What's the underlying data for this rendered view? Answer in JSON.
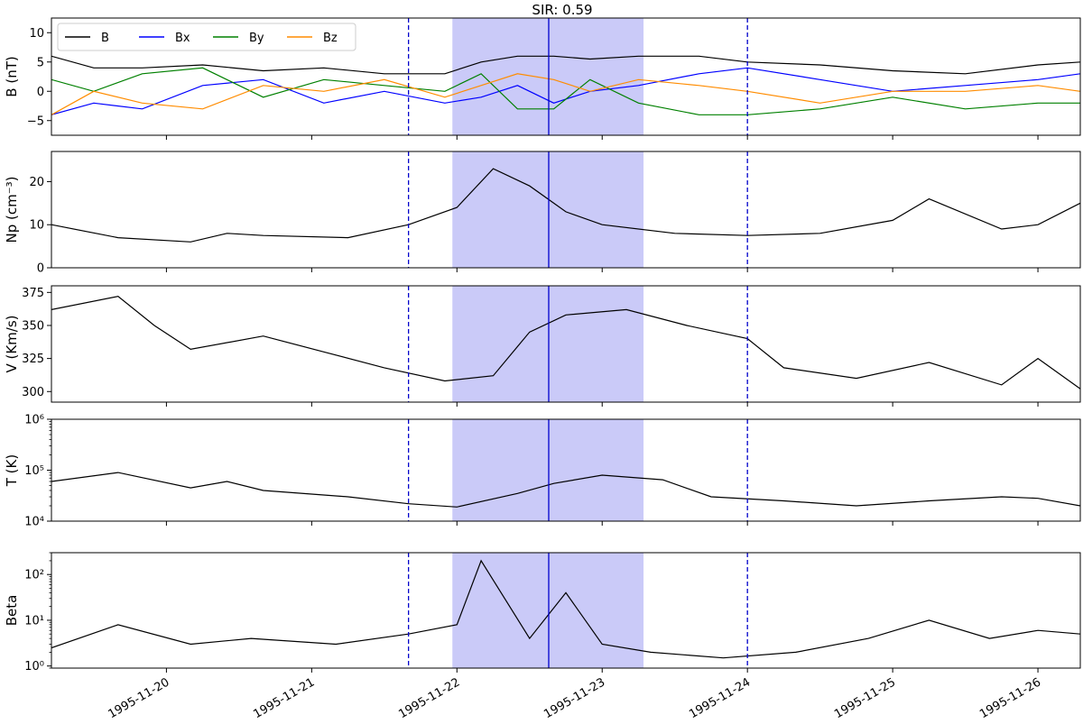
{
  "chart_data": {
    "type": "line",
    "title": "SIR: 0.59",
    "x_range": [
      "1995-11-19T05:00",
      "1995-11-26T07:00"
    ],
    "x_ticks": [
      "1995-11-20",
      "1995-11-21",
      "1995-11-22",
      "1995-11-23",
      "1995-11-24",
      "1995-11-25",
      "1995-11-26"
    ],
    "shaded_interval": {
      "start": "1995-11-21T23:15",
      "end": "1995-11-23T06:50",
      "color": "#8080ee"
    },
    "center_line": {
      "time": "1995-11-22T15:10",
      "style": "solid",
      "color": "#0000cc"
    },
    "boundary_lines": [
      {
        "time": "1995-11-21T16:00",
        "style": "dashed",
        "color": "#0000cc"
      },
      {
        "time": "1995-11-24T00:00",
        "style": "dashed",
        "color": "#0000cc"
      }
    ],
    "panels": [
      {
        "id": "B",
        "ylabel": "B (nT)",
        "scale": "linear",
        "ylim": [
          -7.5,
          12.5
        ],
        "yticks": [
          -5,
          0,
          5,
          10
        ],
        "ytick_labels": [
          "−5",
          "0",
          "5",
          "10"
        ],
        "legend": {
          "position": "upper-left",
          "entries": [
            "B",
            "Bx",
            "By",
            "Bz"
          ]
        },
        "series": [
          {
            "name": "B",
            "color": "#000000",
            "t": [
              "1995-11-19T05:00",
              "1995-11-19T12:00",
              "1995-11-19T20:00",
              "1995-11-20T06:00",
              "1995-11-20T16:00",
              "1995-11-21T02:00",
              "1995-11-21T12:00",
              "1995-11-21T22:00",
              "1995-11-22T04:00",
              "1995-11-22T10:00",
              "1995-11-22T16:00",
              "1995-11-22T22:00",
              "1995-11-23T06:00",
              "1995-11-23T16:00",
              "1995-11-24T00:00",
              "1995-11-24T12:00",
              "1995-11-25T00:00",
              "1995-11-25T12:00",
              "1995-11-26T00:00",
              "1995-11-26T07:00"
            ],
            "v": [
              6,
              4,
              4,
              4.5,
              3.5,
              4,
              3,
              3,
              5,
              6,
              6,
              5.5,
              6,
              6,
              5,
              4.5,
              3.5,
              3,
              4.5,
              5
            ]
          },
          {
            "name": "Bx",
            "color": "#0000ff",
            "t": [
              "1995-11-19T05:00",
              "1995-11-19T12:00",
              "1995-11-19T20:00",
              "1995-11-20T06:00",
              "1995-11-20T16:00",
              "1995-11-21T02:00",
              "1995-11-21T12:00",
              "1995-11-21T22:00",
              "1995-11-22T04:00",
              "1995-11-22T10:00",
              "1995-11-22T16:00",
              "1995-11-22T22:00",
              "1995-11-23T06:00",
              "1995-11-23T16:00",
              "1995-11-24T00:00",
              "1995-11-24T12:00",
              "1995-11-25T00:00",
              "1995-11-25T12:00",
              "1995-11-26T00:00",
              "1995-11-26T07:00"
            ],
            "v": [
              -4,
              -2,
              -3,
              1,
              2,
              -2,
              0,
              -2,
              -1,
              1,
              -2,
              0,
              1,
              3,
              4,
              2,
              0,
              1,
              2,
              3
            ]
          },
          {
            "name": "By",
            "color": "#008000",
            "t": [
              "1995-11-19T05:00",
              "1995-11-19T12:00",
              "1995-11-19T20:00",
              "1995-11-20T06:00",
              "1995-11-20T16:00",
              "1995-11-21T02:00",
              "1995-11-21T12:00",
              "1995-11-21T22:00",
              "1995-11-22T04:00",
              "1995-11-22T10:00",
              "1995-11-22T16:00",
              "1995-11-22T22:00",
              "1995-11-23T06:00",
              "1995-11-23T16:00",
              "1995-11-24T00:00",
              "1995-11-24T12:00",
              "1995-11-25T00:00",
              "1995-11-25T12:00",
              "1995-11-26T00:00",
              "1995-11-26T07:00"
            ],
            "v": [
              2,
              0,
              3,
              4,
              -1,
              2,
              1,
              0,
              3,
              -3,
              -3,
              2,
              -2,
              -4,
              -4,
              -3,
              -1,
              -3,
              -2,
              -2
            ]
          },
          {
            "name": "Bz",
            "color": "#ff8c00",
            "t": [
              "1995-11-19T05:00",
              "1995-11-19T12:00",
              "1995-11-19T20:00",
              "1995-11-20T06:00",
              "1995-11-20T16:00",
              "1995-11-21T02:00",
              "1995-11-21T12:00",
              "1995-11-21T22:00",
              "1995-11-22T04:00",
              "1995-11-22T10:00",
              "1995-11-22T16:00",
              "1995-11-22T22:00",
              "1995-11-23T06:00",
              "1995-11-23T16:00",
              "1995-11-24T00:00",
              "1995-11-24T12:00",
              "1995-11-25T00:00",
              "1995-11-25T12:00",
              "1995-11-26T00:00",
              "1995-11-26T07:00"
            ],
            "v": [
              -4,
              0,
              -2,
              -3,
              1,
              0,
              2,
              -1,
              1,
              3,
              2,
              0,
              2,
              1,
              0,
              -2,
              0,
              0,
              1,
              0
            ]
          }
        ]
      },
      {
        "id": "Np",
        "ylabel": "Np (cm⁻³)",
        "scale": "linear",
        "ylim": [
          0,
          27
        ],
        "yticks": [
          0,
          10,
          20
        ],
        "ytick_labels": [
          "0",
          "10",
          "20"
        ],
        "series": [
          {
            "name": "",
            "color": "#000000",
            "t": [
              "1995-11-19T05:00",
              "1995-11-19T16:00",
              "1995-11-20T04:00",
              "1995-11-20T10:00",
              "1995-11-20T16:00",
              "1995-11-21T06:00",
              "1995-11-21T16:00",
              "1995-11-22T00:00",
              "1995-11-22T06:00",
              "1995-11-22T12:00",
              "1995-11-22T18:00",
              "1995-11-23T00:00",
              "1995-11-23T12:00",
              "1995-11-24T00:00",
              "1995-11-24T12:00",
              "1995-11-25T00:00",
              "1995-11-25T06:00",
              "1995-11-25T18:00",
              "1995-11-26T00:00",
              "1995-11-26T07:00"
            ],
            "v": [
              10,
              7,
              6,
              8,
              7.5,
              7,
              10,
              14,
              23,
              19,
              13,
              10,
              8,
              7.5,
              8,
              11,
              16,
              9,
              10,
              15
            ]
          }
        ]
      },
      {
        "id": "V",
        "ylabel": "V (Km/s)",
        "scale": "linear",
        "ylim": [
          292,
          380
        ],
        "yticks": [
          300,
          325,
          350,
          375
        ],
        "ytick_labels": [
          "300",
          "325",
          "350",
          "375"
        ],
        "series": [
          {
            "name": "",
            "color": "#000000",
            "t": [
              "1995-11-19T05:00",
              "1995-11-19T16:00",
              "1995-11-19T22:00",
              "1995-11-20T04:00",
              "1995-11-20T16:00",
              "1995-11-21T02:00",
              "1995-11-21T12:00",
              "1995-11-21T22:00",
              "1995-11-22T06:00",
              "1995-11-22T12:00",
              "1995-11-22T18:00",
              "1995-11-23T04:00",
              "1995-11-23T14:00",
              "1995-11-24T00:00",
              "1995-11-24T06:00",
              "1995-11-24T18:00",
              "1995-11-25T06:00",
              "1995-11-25T18:00",
              "1995-11-26T00:00",
              "1995-11-26T07:00"
            ],
            "v": [
              362,
              372,
              350,
              332,
              342,
              330,
              318,
              308,
              312,
              345,
              358,
              362,
              350,
              340,
              318,
              310,
              322,
              305,
              325,
              302
            ]
          }
        ]
      },
      {
        "id": "T",
        "ylabel": "T (K)",
        "scale": "log",
        "ylim": [
          10000,
          1000000
        ],
        "yticks": [
          10000,
          100000,
          1000000
        ],
        "ytick_labels": [
          "10⁴",
          "10⁵",
          "10⁶"
        ],
        "series": [
          {
            "name": "",
            "color": "#000000",
            "t": [
              "1995-11-19T05:00",
              "1995-11-19T16:00",
              "1995-11-20T04:00",
              "1995-11-20T10:00",
              "1995-11-20T16:00",
              "1995-11-21T06:00",
              "1995-11-21T16:00",
              "1995-11-22T00:00",
              "1995-11-22T10:00",
              "1995-11-22T16:00",
              "1995-11-23T00:00",
              "1995-11-23T10:00",
              "1995-11-23T18:00",
              "1995-11-24T06:00",
              "1995-11-24T18:00",
              "1995-11-25T06:00",
              "1995-11-25T18:00",
              "1995-11-26T00:00",
              "1995-11-26T07:00"
            ],
            "v": [
              60000,
              90000,
              45000,
              60000,
              40000,
              30000,
              22000,
              19000,
              35000,
              55000,
              80000,
              65000,
              30000,
              25000,
              20000,
              25000,
              30000,
              28000,
              20000
            ]
          }
        ]
      },
      {
        "id": "Beta",
        "ylabel": "Beta",
        "scale": "log",
        "ylim": [
          0.9,
          300
        ],
        "yticks": [
          1,
          10,
          100
        ],
        "ytick_labels": [
          "10⁰",
          "10¹",
          "10²"
        ],
        "series": [
          {
            "name": "",
            "color": "#000000",
            "t": [
              "1995-11-19T05:00",
              "1995-11-19T16:00",
              "1995-11-20T04:00",
              "1995-11-20T14:00",
              "1995-11-21T04:00",
              "1995-11-21T16:00",
              "1995-11-22T00:00",
              "1995-11-22T04:00",
              "1995-11-22T12:00",
              "1995-11-22T18:00",
              "1995-11-23T00:00",
              "1995-11-23T08:00",
              "1995-11-23T20:00",
              "1995-11-24T08:00",
              "1995-11-24T20:00",
              "1995-11-25T06:00",
              "1995-11-25T16:00",
              "1995-11-26T00:00",
              "1995-11-26T07:00"
            ],
            "v": [
              2.5,
              8,
              3,
              4,
              3,
              5,
              8,
              200,
              4,
              40,
              3,
              2,
              1.5,
              2,
              4,
              10,
              4,
              6,
              5
            ]
          }
        ]
      }
    ]
  }
}
